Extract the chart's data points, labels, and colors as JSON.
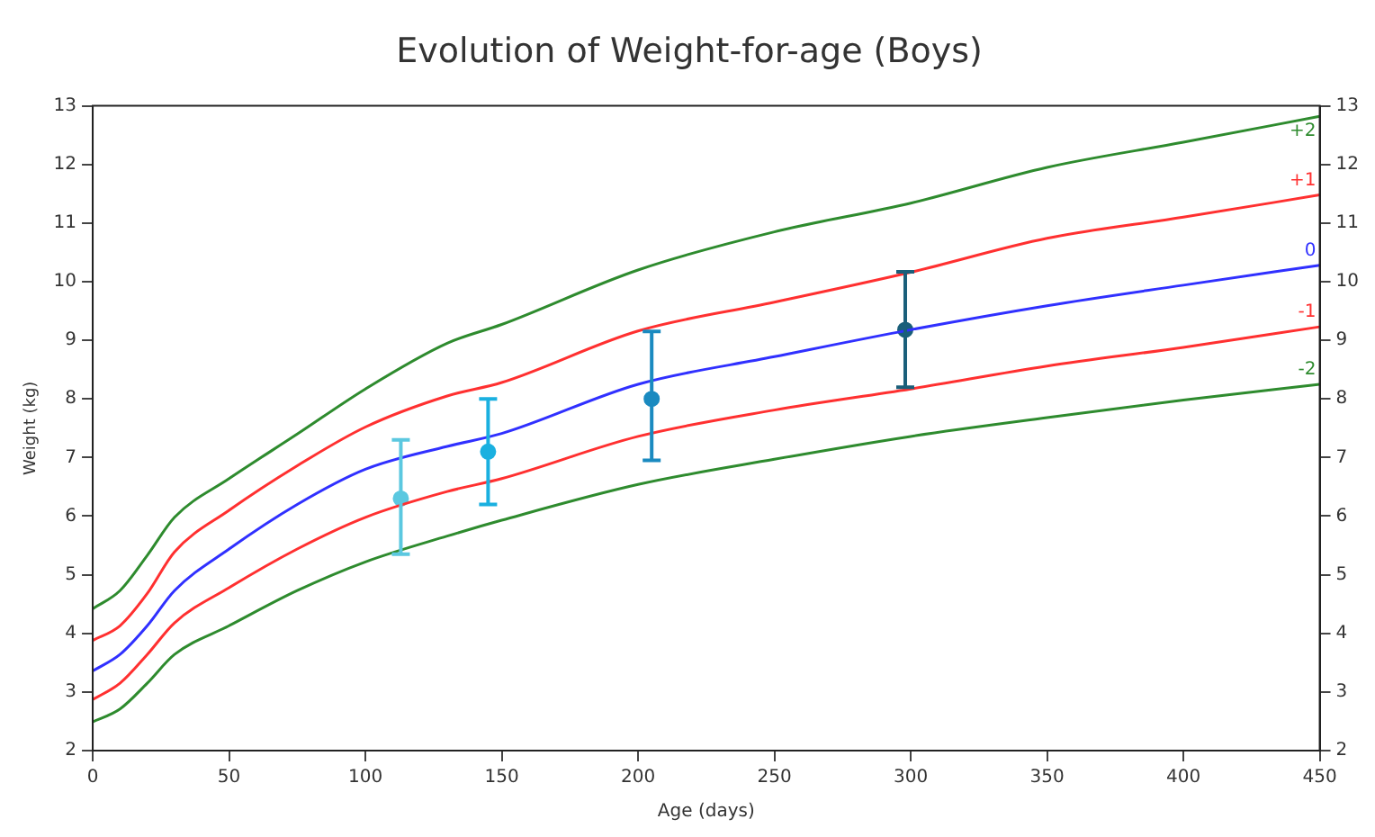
{
  "chart_data": {
    "type": "line",
    "title": "Evolution of Weight-for-age (Boys)",
    "xlabel": "Age (days)",
    "ylabel": "Weight (kg)",
    "x": [
      0,
      10,
      20,
      30,
      50,
      75,
      100,
      130,
      150,
      200,
      250,
      300,
      350,
      400,
      450
    ],
    "xlim": [
      0,
      450
    ],
    "xticks": [
      0,
      50,
      100,
      150,
      200,
      250,
      300,
      350,
      400,
      450
    ],
    "ylim": [
      2,
      13
    ],
    "yticks": [
      2,
      3,
      4,
      5,
      6,
      7,
      8,
      9,
      10,
      11,
      12,
      13
    ],
    "y2lim": [
      2,
      13
    ],
    "y2ticks": [
      2,
      3,
      4,
      5,
      6,
      7,
      8,
      9,
      10,
      11,
      12,
      13
    ],
    "series": [
      {
        "name": "+2",
        "color": "#2e8b2e",
        "values": [
          4.42,
          4.73,
          5.33,
          5.98,
          6.64,
          7.4,
          8.17,
          8.95,
          9.27,
          10.2,
          10.85,
          11.34,
          11.95,
          12.38,
          12.82
        ]
      },
      {
        "name": "+1",
        "color": "#ff3030",
        "values": [
          3.88,
          4.13,
          4.68,
          5.39,
          6.1,
          6.86,
          7.52,
          8.05,
          8.28,
          9.16,
          9.65,
          10.16,
          10.74,
          11.1,
          11.48
        ]
      },
      {
        "name": "0",
        "color": "#3030ff",
        "values": [
          3.36,
          3.64,
          4.13,
          4.73,
          5.44,
          6.2,
          6.8,
          7.19,
          7.41,
          8.25,
          8.72,
          9.18,
          9.59,
          9.94,
          10.28
        ]
      },
      {
        "name": "-1",
        "color": "#ff3030",
        "values": [
          2.87,
          3.15,
          3.64,
          4.18,
          4.78,
          5.44,
          5.98,
          6.42,
          6.64,
          7.36,
          7.81,
          8.17,
          8.56,
          8.88,
          9.23
        ]
      },
      {
        "name": "-2",
        "color": "#2e8b2e",
        "values": [
          2.49,
          2.71,
          3.15,
          3.64,
          4.13,
          4.73,
          5.22,
          5.66,
          5.93,
          6.54,
          6.97,
          7.36,
          7.68,
          7.98,
          8.25
        ]
      },
      {
        "type": "scatter",
        "marker": "circle",
        "x": [
          113,
          145,
          205,
          298
        ],
        "values": [
          6.3,
          7.1,
          8.0,
          9.18
        ],
        "errors": [
          [
            5.35,
            7.3
          ],
          [
            6.2,
            8.0
          ],
          [
            6.95,
            9.15
          ],
          [
            8.2,
            10.17
          ]
        ],
        "colors": [
          "#5bc8e0",
          "#1ab0e0",
          "#1a8ac0",
          "#1a5f7a"
        ]
      }
    ]
  }
}
